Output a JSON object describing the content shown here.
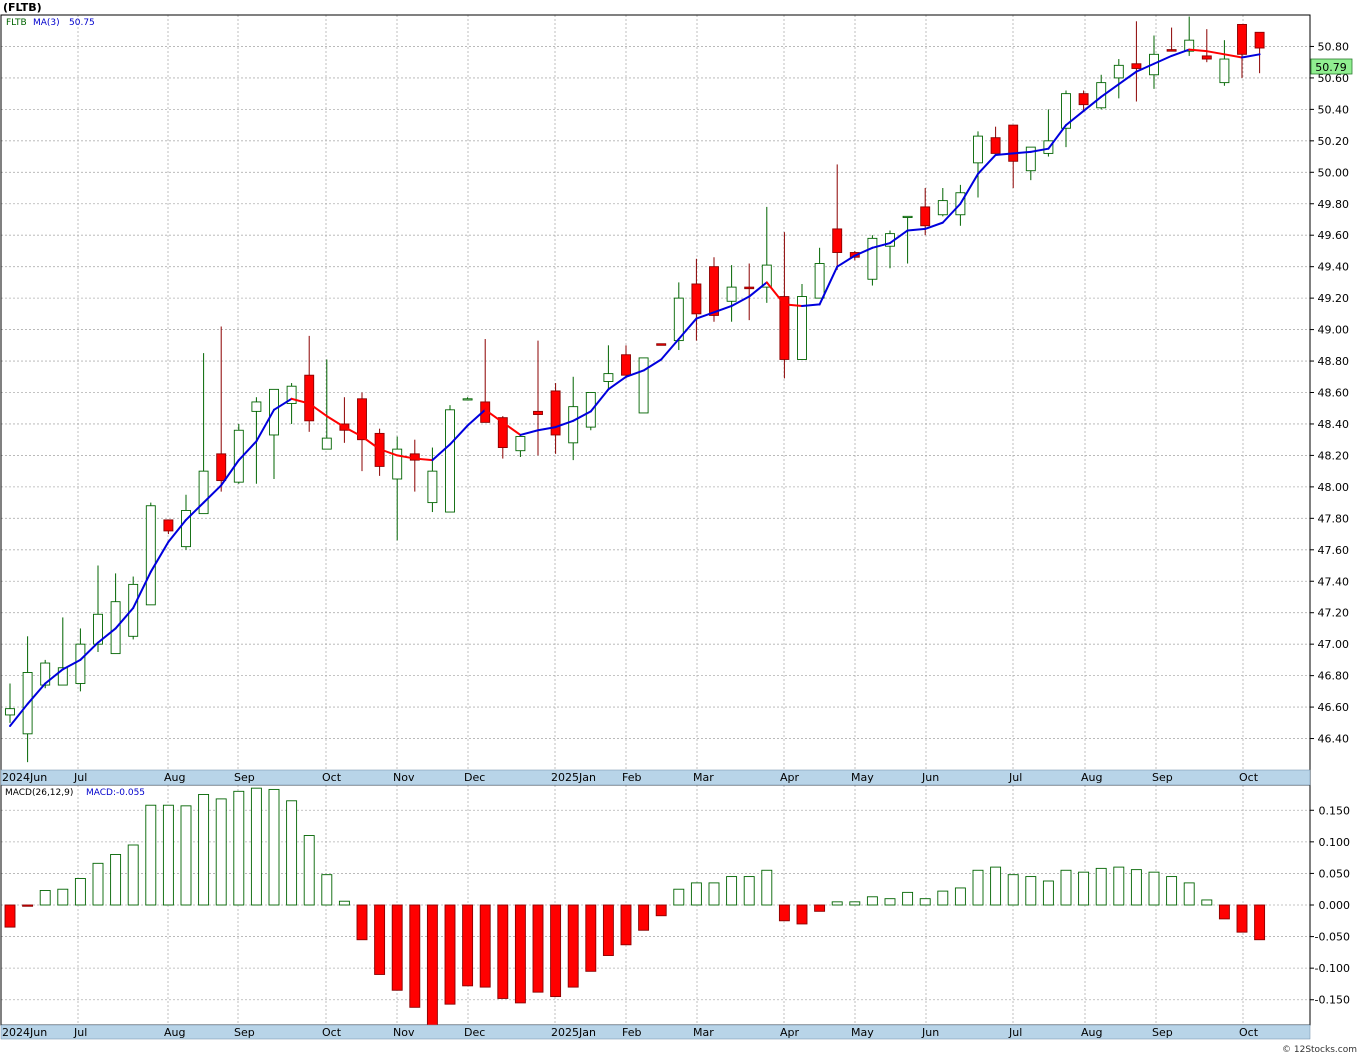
{
  "header": {
    "symbol": "(FLTB)",
    "ma_label": "MA(3)",
    "ma_value": "50.75",
    "ticker_small": "FLTB",
    "macd_label": "MACD(26,12,9)",
    "macd_value": "MACD:-0.055",
    "watermark": "© 12Stocks.com"
  },
  "colors": {
    "up_fill": "#ffffff",
    "up_stroke": "#006400",
    "down_fill": "#ff0000",
    "down_stroke": "#8b0000",
    "ma_up": "#0000dd",
    "ma_down": "#ff0000",
    "grid": "#b0b0b0",
    "axis_band": "#b8d4e8",
    "last_price_bg": "#90ee90"
  },
  "chart_data": [
    {
      "type": "candlestick",
      "name": "price",
      "last_price_label": "50.79",
      "ylim": [
        46.2,
        51.0
      ],
      "yticks": [
        "46.40",
        "46.60",
        "46.80",
        "47.00",
        "47.20",
        "47.40",
        "47.60",
        "47.80",
        "48.00",
        "48.20",
        "48.40",
        "48.60",
        "48.80",
        "49.00",
        "49.20",
        "49.40",
        "49.60",
        "49.80",
        "50.00",
        "50.20",
        "50.40",
        "50.60",
        "50.80"
      ],
      "x_labels": [
        "2024Jun",
        "Jul",
        "Aug",
        "Sep",
        "Oct",
        "Nov",
        "Dec",
        "2025Jan",
        "Feb",
        "Mar",
        "Apr",
        "May",
        "Jun",
        "Jul",
        "Aug",
        "Sep",
        "Oct"
      ],
      "candles": [
        {
          "o": 46.55,
          "h": 46.75,
          "l": 46.5,
          "c": 46.59
        },
        {
          "o": 46.43,
          "h": 47.05,
          "l": 46.25,
          "c": 46.82
        },
        {
          "o": 46.74,
          "h": 46.9,
          "l": 46.72,
          "c": 46.88
        },
        {
          "o": 46.74,
          "h": 47.17,
          "l": 46.74,
          "c": 46.85
        },
        {
          "o": 46.75,
          "h": 47.1,
          "l": 46.7,
          "c": 47.0
        },
        {
          "o": 47.0,
          "h": 47.5,
          "l": 46.95,
          "c": 47.19
        },
        {
          "o": 46.94,
          "h": 47.45,
          "l": 46.94,
          "c": 47.27
        },
        {
          "o": 47.05,
          "h": 47.43,
          "l": 47.03,
          "c": 47.38
        },
        {
          "o": 47.25,
          "h": 47.9,
          "l": 47.25,
          "c": 47.88
        },
        {
          "o": 47.79,
          "h": 47.79,
          "l": 47.7,
          "c": 47.72
        },
        {
          "o": 47.62,
          "h": 47.95,
          "l": 47.6,
          "c": 47.85
        },
        {
          "o": 47.83,
          "h": 48.85,
          "l": 47.83,
          "c": 48.1
        },
        {
          "o": 48.21,
          "h": 49.02,
          "l": 47.97,
          "c": 48.04
        },
        {
          "o": 48.03,
          "h": 48.4,
          "l": 48.02,
          "c": 48.36
        },
        {
          "o": 48.48,
          "h": 48.57,
          "l": 48.02,
          "c": 48.54
        },
        {
          "o": 48.33,
          "h": 48.62,
          "l": 48.05,
          "c": 48.62
        },
        {
          "o": 48.53,
          "h": 48.66,
          "l": 48.4,
          "c": 48.64
        },
        {
          "o": 48.71,
          "h": 48.96,
          "l": 48.35,
          "c": 48.42
        },
        {
          "o": 48.24,
          "h": 48.81,
          "l": 48.24,
          "c": 48.31
        },
        {
          "o": 48.4,
          "h": 48.57,
          "l": 48.28,
          "c": 48.36
        },
        {
          "o": 48.56,
          "h": 48.6,
          "l": 48.1,
          "c": 48.3
        },
        {
          "o": 48.34,
          "h": 48.37,
          "l": 48.07,
          "c": 48.13
        },
        {
          "o": 48.05,
          "h": 48.32,
          "l": 47.66,
          "c": 48.24
        },
        {
          "o": 48.21,
          "h": 48.3,
          "l": 47.97,
          "c": 48.17
        },
        {
          "o": 47.9,
          "h": 48.25,
          "l": 47.84,
          "c": 48.1
        },
        {
          "o": 47.84,
          "h": 48.52,
          "l": 47.84,
          "c": 48.49
        },
        {
          "o": 48.56,
          "h": 48.57,
          "l": 48.56,
          "c": 48.56
        },
        {
          "o": 48.54,
          "h": 48.94,
          "l": 48.41,
          "c": 48.41
        },
        {
          "o": 48.44,
          "h": 48.45,
          "l": 48.18,
          "c": 48.25
        },
        {
          "o": 48.23,
          "h": 48.32,
          "l": 48.19,
          "c": 48.32
        },
        {
          "o": 48.48,
          "h": 48.93,
          "l": 48.2,
          "c": 48.46
        },
        {
          "o": 48.61,
          "h": 48.66,
          "l": 48.21,
          "c": 48.33
        },
        {
          "o": 48.28,
          "h": 48.7,
          "l": 48.17,
          "c": 48.51
        },
        {
          "o": 48.38,
          "h": 48.6,
          "l": 48.36,
          "c": 48.6
        },
        {
          "o": 48.67,
          "h": 48.9,
          "l": 48.62,
          "c": 48.72
        },
        {
          "o": 48.84,
          "h": 48.9,
          "l": 48.69,
          "c": 48.71
        },
        {
          "o": 48.47,
          "h": 48.82,
          "l": 48.47,
          "c": 48.82
        },
        {
          "o": 48.91,
          "h": 48.91,
          "l": 48.9,
          "c": 48.9
        },
        {
          "o": 48.93,
          "h": 49.3,
          "l": 48.87,
          "c": 49.2
        },
        {
          "o": 49.29,
          "h": 49.45,
          "l": 48.93,
          "c": 49.1
        },
        {
          "o": 49.4,
          "h": 49.46,
          "l": 49.05,
          "c": 49.09
        },
        {
          "o": 49.18,
          "h": 49.41,
          "l": 49.05,
          "c": 49.27
        },
        {
          "o": 49.27,
          "h": 49.42,
          "l": 49.06,
          "c": 49.26
        },
        {
          "o": 49.27,
          "h": 49.78,
          "l": 49.17,
          "c": 49.41
        },
        {
          "o": 49.21,
          "h": 49.62,
          "l": 48.69,
          "c": 48.81
        },
        {
          "o": 48.81,
          "h": 49.29,
          "l": 48.81,
          "c": 49.21
        },
        {
          "o": 49.2,
          "h": 49.52,
          "l": 49.2,
          "c": 49.42
        },
        {
          "o": 49.64,
          "h": 50.05,
          "l": 49.38,
          "c": 49.49
        },
        {
          "o": 49.49,
          "h": 49.5,
          "l": 49.44,
          "c": 49.46
        },
        {
          "o": 49.32,
          "h": 49.6,
          "l": 49.28,
          "c": 49.58
        },
        {
          "o": 49.53,
          "h": 49.63,
          "l": 49.39,
          "c": 49.61
        },
        {
          "o": 49.72,
          "h": 49.72,
          "l": 49.42,
          "c": 49.72
        },
        {
          "o": 49.78,
          "h": 49.9,
          "l": 49.6,
          "c": 49.66
        },
        {
          "o": 49.73,
          "h": 49.9,
          "l": 49.72,
          "c": 49.82
        },
        {
          "o": 49.73,
          "h": 49.92,
          "l": 49.66,
          "c": 49.87
        },
        {
          "o": 50.06,
          "h": 50.26,
          "l": 49.84,
          "c": 50.23
        },
        {
          "o": 50.22,
          "h": 50.29,
          "l": 50.12,
          "c": 50.12
        },
        {
          "o": 50.3,
          "h": 50.3,
          "l": 49.9,
          "c": 50.07
        },
        {
          "o": 50.01,
          "h": 50.16,
          "l": 49.95,
          "c": 50.16
        },
        {
          "o": 50.12,
          "h": 50.4,
          "l": 50.1,
          "c": 50.2
        },
        {
          "o": 50.28,
          "h": 50.52,
          "l": 50.16,
          "c": 50.5
        },
        {
          "o": 50.5,
          "h": 50.52,
          "l": 50.39,
          "c": 50.43
        },
        {
          "o": 50.41,
          "h": 50.62,
          "l": 50.4,
          "c": 50.57
        },
        {
          "o": 50.6,
          "h": 50.72,
          "l": 50.47,
          "c": 50.68
        },
        {
          "o": 50.69,
          "h": 50.96,
          "l": 50.45,
          "c": 50.66
        },
        {
          "o": 50.62,
          "h": 50.87,
          "l": 50.53,
          "c": 50.75
        },
        {
          "o": 50.78,
          "h": 50.92,
          "l": 50.78,
          "c": 50.77
        },
        {
          "o": 50.77,
          "h": 50.99,
          "l": 50.74,
          "c": 50.84
        },
        {
          "o": 50.74,
          "h": 50.91,
          "l": 50.7,
          "c": 50.72
        },
        {
          "o": 50.57,
          "h": 50.84,
          "l": 50.55,
          "c": 50.72
        },
        {
          "o": 50.94,
          "h": 50.94,
          "l": 50.6,
          "c": 50.75
        },
        {
          "o": 50.89,
          "h": 50.89,
          "l": 50.63,
          "c": 50.79
        }
      ],
      "ma3": [
        46.48,
        46.62,
        46.75,
        46.84,
        46.9,
        47.01,
        47.1,
        47.23,
        47.46,
        47.65,
        47.79,
        47.9,
        48.01,
        48.17,
        48.29,
        48.49,
        48.56,
        48.53,
        48.45,
        48.38,
        48.32,
        48.24,
        48.2,
        48.18,
        48.17,
        48.27,
        48.39,
        48.49,
        48.41,
        48.33,
        48.36,
        48.38,
        48.42,
        48.48,
        48.62,
        48.7,
        48.74,
        48.81,
        48.94,
        49.07,
        49.11,
        49.15,
        49.21,
        49.3,
        49.16,
        49.15,
        49.16,
        49.4,
        49.47,
        49.52,
        49.55,
        49.63,
        49.64,
        49.68,
        49.8,
        49.99,
        50.11,
        50.12,
        50.13,
        50.15,
        50.3,
        50.39,
        50.48,
        50.56,
        50.64,
        50.69,
        50.74,
        50.78,
        50.77,
        50.75,
        50.73,
        50.75
      ]
    },
    {
      "type": "bar",
      "name": "MACD",
      "ylim": [
        -0.19,
        0.19
      ],
      "yticks": [
        "0.150",
        "0.100",
        "0.050",
        "0.000",
        "-0.050",
        "-0.100",
        "-0.150"
      ],
      "x_labels": [
        "2024Jun",
        "Jul",
        "Aug",
        "Sep",
        "Oct",
        "Nov",
        "Dec",
        "2025Jan",
        "Feb",
        "Mar",
        "Apr",
        "May",
        "Jun",
        "Jul",
        "Aug",
        "Sep",
        "Oct"
      ],
      "values": [
        -0.035,
        -0.002,
        0.023,
        0.025,
        0.042,
        0.066,
        0.08,
        0.095,
        0.158,
        0.158,
        0.157,
        0.175,
        0.168,
        0.18,
        0.185,
        0.183,
        0.165,
        0.11,
        0.048,
        0.006,
        -0.055,
        -0.11,
        -0.135,
        -0.162,
        -0.193,
        -0.157,
        -0.128,
        -0.13,
        -0.148,
        -0.155,
        -0.138,
        -0.145,
        -0.13,
        -0.105,
        -0.08,
        -0.063,
        -0.04,
        -0.017,
        0.025,
        0.035,
        0.035,
        0.045,
        0.045,
        0.055,
        -0.025,
        -0.03,
        -0.01,
        0.005,
        0.005,
        0.013,
        0.01,
        0.02,
        0.01,
        0.022,
        0.027,
        0.055,
        0.06,
        0.048,
        0.045,
        0.038,
        0.055,
        0.052,
        0.058,
        0.06,
        0.056,
        0.052,
        0.045,
        0.035,
        0.008,
        -0.022,
        -0.043,
        -0.055
      ]
    }
  ]
}
